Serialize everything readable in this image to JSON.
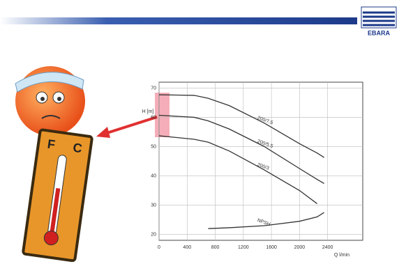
{
  "logo": "EBARA",
  "thermometer": {
    "left": "F",
    "right": "C"
  },
  "chart_data": {
    "type": "line",
    "y_label": "H [m]",
    "x_label": "Q l/min",
    "x": [
      0,
      500,
      700,
      1000,
      1500,
      2000,
      2250,
      2350
    ],
    "series": [
      {
        "name": "200/7.5",
        "color": "#333333",
        "values": [
          67.7,
          67.5,
          66.5,
          64,
          58,
          51,
          47.8,
          46.3
        ]
      },
      {
        "name": "200/5.5",
        "color": "#333333",
        "values": [
          60.7,
          60,
          58.8,
          56,
          50,
          42.5,
          38.8,
          37.4
        ]
      },
      {
        "name": "200/3",
        "color": "#333333",
        "values": [
          53.7,
          52.5,
          51.5,
          48.5,
          42,
          35,
          30.5,
          null
        ]
      },
      {
        "name": "NPSH",
        "color": "#333333",
        "values": [
          null,
          null,
          22,
          22.3,
          23,
          24.5,
          26,
          27.5
        ]
      }
    ],
    "xlim": [
      0,
      2900
    ],
    "xticks": [
      0,
      400,
      800,
      1200,
      1600,
      2000,
      2400
    ],
    "ylim": [
      18,
      72
    ],
    "yticks": [
      20,
      30,
      40,
      50,
      60,
      70
    ],
    "grid": true
  }
}
